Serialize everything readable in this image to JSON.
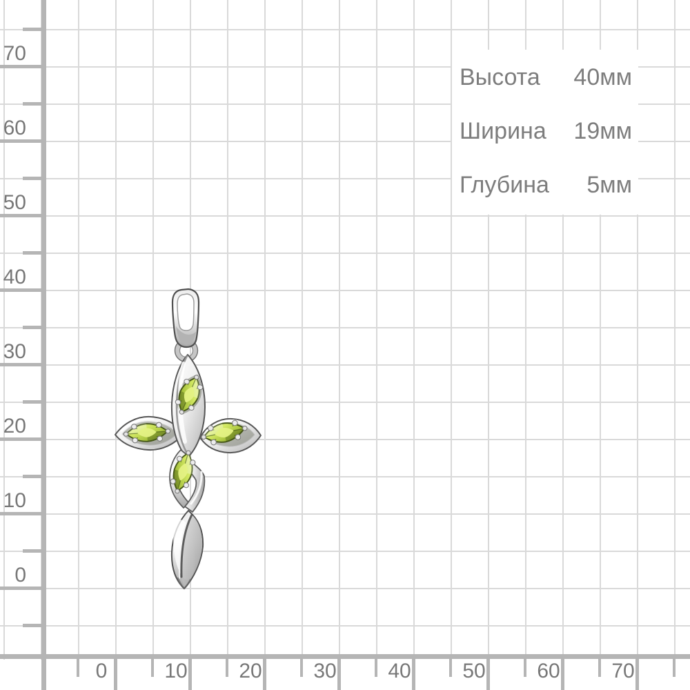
{
  "page": {
    "description": "Jewelry product dimension photo: silver cross pendant with green marquise stones on millimeter grid paper with rulers"
  },
  "dimensions_panel": {
    "rows": [
      {
        "label": "Высота",
        "value": "40мм"
      },
      {
        "label": "Ширина",
        "value": "19мм"
      },
      {
        "label": "Глубина",
        "value": "5мм"
      }
    ]
  },
  "rulers": {
    "unit": "mm",
    "mm_per_major_tick": 10,
    "left": {
      "labels": [
        "70",
        "60",
        "50",
        "40",
        "30",
        "20",
        "10",
        "0"
      ]
    },
    "bottom": {
      "labels": [
        "0",
        "10",
        "20",
        "30",
        "40",
        "50",
        "60",
        "70"
      ]
    }
  },
  "pendant": {
    "name": "Silver cross pendant with four green marquise stones and bail",
    "stones_count": 4,
    "stone_color": "#b8d23c",
    "metal_color": "#c8c8c8"
  },
  "colors": {
    "background": "#ffffff",
    "grid_line": "#d9d9d9",
    "ruler": "#b5b5b5",
    "ruler_text": "#787878",
    "dimension_text": "#7d7d7d"
  }
}
